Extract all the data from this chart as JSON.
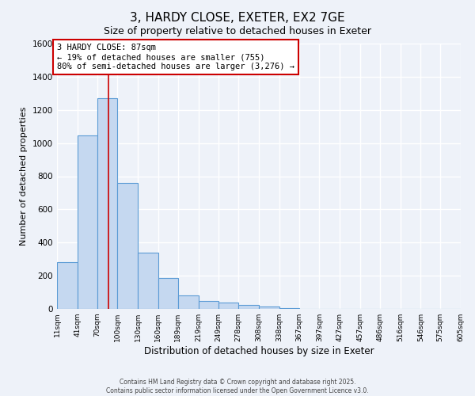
{
  "title": "3, HARDY CLOSE, EXETER, EX2 7GE",
  "subtitle": "Size of property relative to detached houses in Exeter",
  "xlabel": "Distribution of detached houses by size in Exeter",
  "ylabel": "Number of detached properties",
  "bar_color": "#c5d8f0",
  "bar_edge_color": "#5b9bd5",
  "ylim": [
    0,
    1600
  ],
  "yticks": [
    0,
    200,
    400,
    600,
    800,
    1000,
    1200,
    1400,
    1600
  ],
  "property_line_x": 87,
  "property_line_color": "#cc0000",
  "annotation_title": "3 HARDY CLOSE: 87sqm",
  "annotation_line1": "← 19% of detached houses are smaller (755)",
  "annotation_line2": "80% of semi-detached houses are larger (3,276) →",
  "annotation_box_color": "#ffffff",
  "annotation_box_edge": "#cc0000",
  "footer1": "Contains HM Land Registry data © Crown copyright and database right 2025.",
  "footer2": "Contains public sector information licensed under the Open Government Licence v3.0.",
  "background_color": "#eef2f9",
  "grid_color": "#ffffff",
  "bin_edges": [
    11,
    41,
    70,
    100,
    130,
    160,
    189,
    219,
    249,
    278,
    308,
    338,
    367,
    397,
    427,
    457,
    486,
    516,
    546,
    575,
    605
  ],
  "bar_values": [
    280,
    1045,
    1270,
    760,
    340,
    185,
    80,
    50,
    40,
    25,
    12,
    5,
    0,
    0,
    0,
    0,
    0,
    0,
    0,
    0
  ],
  "bar_labels": [
    "11sqm",
    "41sqm",
    "70sqm",
    "100sqm",
    "130sqm",
    "160sqm",
    "189sqm",
    "219sqm",
    "249sqm",
    "278sqm",
    "308sqm",
    "338sqm",
    "367sqm",
    "397sqm",
    "427sqm",
    "457sqm",
    "486sqm",
    "516sqm",
    "546sqm",
    "575sqm",
    "605sqm"
  ]
}
